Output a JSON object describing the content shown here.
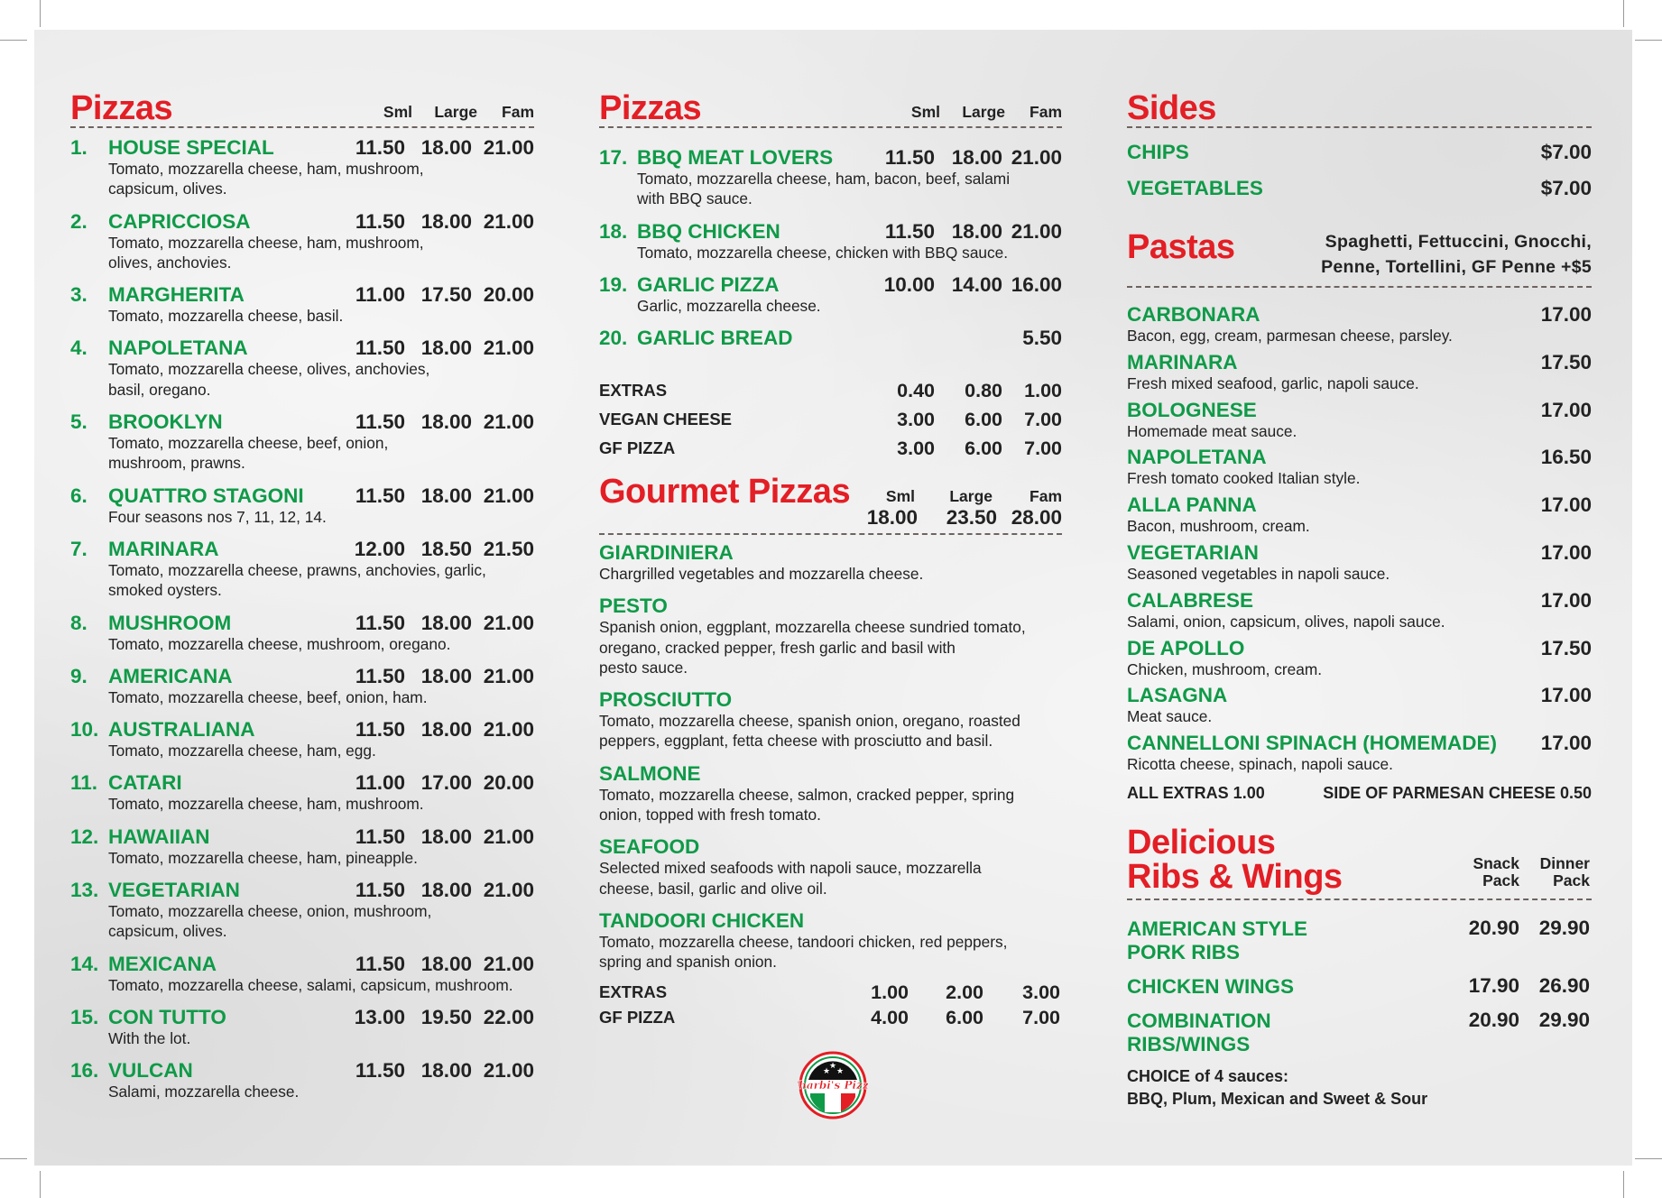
{
  "colors": {
    "heading": "#e31e25",
    "item_name": "#0f9a48",
    "text": "#222222",
    "background": "#ebebeb"
  },
  "left": {
    "title": "Pizzas",
    "cols": [
      "Sml",
      "Large",
      "Fam"
    ],
    "items": [
      {
        "num": "1.",
        "name": "HOUSE SPECIAL",
        "prices": [
          "11.50",
          "18.00",
          "21.00"
        ],
        "desc": "Tomato, mozzarella cheese, ham, mushroom,\ncapsicum, olives."
      },
      {
        "num": "2.",
        "name": "CAPRICCIOSA",
        "prices": [
          "11.50",
          "18.00",
          "21.00"
        ],
        "desc": "Tomato, mozzarella cheese, ham, mushroom,\nolives, anchovies."
      },
      {
        "num": "3.",
        "name": "MARGHERITA",
        "prices": [
          "11.00",
          "17.50",
          "20.00"
        ],
        "desc": "Tomato, mozzarella cheese, basil."
      },
      {
        "num": "4.",
        "name": "NAPOLETANA",
        "prices": [
          "11.50",
          "18.00",
          "21.00"
        ],
        "desc": "Tomato, mozzarella cheese, olives, anchovies,\nbasil, oregano."
      },
      {
        "num": "5.",
        "name": "BROOKLYN",
        "prices": [
          "11.50",
          "18.00",
          "21.00"
        ],
        "desc": "Tomato, mozzarella cheese, beef, onion,\nmushroom, prawns."
      },
      {
        "num": "6.",
        "name": "QUATTRO STAGONI",
        "prices": [
          "11.50",
          "18.00",
          "21.00"
        ],
        "desc": "Four seasons nos 7, 11, 12, 14."
      },
      {
        "num": "7.",
        "name": "MARINARA",
        "prices": [
          "12.00",
          "18.50",
          "21.50"
        ],
        "desc": "Tomato, mozzarella cheese, prawns, anchovies, garlic,\nsmoked oysters."
      },
      {
        "num": "8.",
        "name": "MUSHROOM",
        "prices": [
          "11.50",
          "18.00",
          "21.00"
        ],
        "desc": "Tomato, mozzarella cheese, mushroom, oregano."
      },
      {
        "num": "9.",
        "name": "AMERICANA",
        "prices": [
          "11.50",
          "18.00",
          "21.00"
        ],
        "desc": "Tomato, mozzarella cheese, beef, onion, ham."
      },
      {
        "num": "10.",
        "name": "AUSTRALIANA",
        "prices": [
          "11.50",
          "18.00",
          "21.00"
        ],
        "desc": "Tomato, mozzarella cheese, ham, egg."
      },
      {
        "num": "11.",
        "name": "CATARI",
        "prices": [
          "11.00",
          "17.00",
          "20.00"
        ],
        "desc": "Tomato, mozzarella cheese, ham, mushroom."
      },
      {
        "num": "12.",
        "name": "HAWAIIAN",
        "prices": [
          "11.50",
          "18.00",
          "21.00"
        ],
        "desc": "Tomato, mozzarella cheese, ham, pineapple."
      },
      {
        "num": "13.",
        "name": "VEGETARIAN",
        "prices": [
          "11.50",
          "18.00",
          "21.00"
        ],
        "desc": "Tomato, mozzarella cheese, onion, mushroom,\ncapsicum, olives."
      },
      {
        "num": "14.",
        "name": "MEXICANA",
        "prices": [
          "11.50",
          "18.00",
          "21.00"
        ],
        "desc": "Tomato, mozzarella cheese, salami, capsicum, mushroom."
      },
      {
        "num": "15.",
        "name": "CON TUTTO",
        "prices": [
          "13.00",
          "19.50",
          "22.00"
        ],
        "desc": "With the lot."
      },
      {
        "num": "16.",
        "name": "VULCAN",
        "prices": [
          "11.50",
          "18.00",
          "21.00"
        ],
        "desc": "Salami, mozzarella cheese."
      }
    ]
  },
  "middle": {
    "title": "Pizzas",
    "cols": [
      "Sml",
      "Large",
      "Fam"
    ],
    "items": [
      {
        "num": "17.",
        "name": "BBQ MEAT LOVERS",
        "prices": [
          "11.50",
          "18.00",
          "21.00"
        ],
        "desc": "Tomato, mozzarella cheese, ham, bacon, beef, salami\nwith BBQ sauce."
      },
      {
        "num": "18.",
        "name": "BBQ CHICKEN",
        "prices": [
          "11.50",
          "18.00",
          "21.00"
        ],
        "desc": "Tomato, mozzarella cheese, chicken with BBQ sauce."
      },
      {
        "num": "19.",
        "name": "GARLIC PIZZA",
        "prices": [
          "10.00",
          "14.00",
          "16.00"
        ],
        "desc": "Garlic, mozzarella cheese."
      },
      {
        "num": "20.",
        "name": "GARLIC BREAD",
        "prices": [
          "",
          "",
          "5.50"
        ],
        "desc": ""
      }
    ],
    "extras": [
      {
        "label": "EXTRAS",
        "prices": [
          "0.40",
          "0.80",
          "1.00"
        ]
      },
      {
        "label": "VEGAN CHEESE",
        "prices": [
          "3.00",
          "6.00",
          "7.00"
        ]
      },
      {
        "label": "GF PIZZA",
        "prices": [
          "3.00",
          "6.00",
          "7.00"
        ]
      }
    ],
    "gourmet": {
      "title": "Gourmet Pizzas",
      "cols": [
        "Sml",
        "Large",
        "Fam"
      ],
      "prices": [
        "18.00",
        "23.50",
        "28.00"
      ],
      "items": [
        {
          "name": "GIARDINIERA",
          "desc": "Chargrilled vegetables and mozzarella cheese."
        },
        {
          "name": "PESTO",
          "desc": "Spanish onion, eggplant, mozzarella cheese sundried tomato,\noregano, cracked pepper, fresh garlic and basil with\npesto sauce."
        },
        {
          "name": "PROSCIUTTO",
          "desc": "Tomato, mozzarella cheese, spanish onion, oregano, roasted\npeppers, eggplant, fetta cheese with prosciutto and basil."
        },
        {
          "name": "SALMONE",
          "desc": "Tomato, mozzarella cheese, salmon, cracked pepper, spring\nonion, topped with fresh tomato."
        },
        {
          "name": "SEAFOOD",
          "desc": "Selected mixed seafoods with napoli sauce, mozzarella\ncheese, basil, garlic and olive oil."
        },
        {
          "name": "TANDOORI CHICKEN",
          "desc": "Tomato, mozzarella cheese, tandoori chicken, red peppers,\nspring and spanish onion."
        }
      ],
      "extras": [
        {
          "label": "EXTRAS",
          "prices": [
            "1.00",
            "2.00",
            "3.00"
          ]
        },
        {
          "label": "GF PIZZA",
          "prices": [
            "4.00",
            "6.00",
            "7.00"
          ]
        }
      ]
    },
    "logo": {
      "text": "Charbi's Pizza"
    }
  },
  "right": {
    "sides": {
      "title": "Sides",
      "items": [
        {
          "name": "CHIPS",
          "price": "$7.00"
        },
        {
          "name": "VEGETABLES",
          "price": "$7.00"
        }
      ]
    },
    "pastas": {
      "title": "Pastas",
      "subtitle_line1": "Spaghetti, Fettuccini, Gnocchi,",
      "subtitle_line2": "Penne, Tortellini, GF Penne +$5",
      "items": [
        {
          "name": "CARBONARA",
          "price": "17.00",
          "desc": "Bacon, egg, cream, parmesan cheese, parsley."
        },
        {
          "name": "MARINARA",
          "price": "17.50",
          "desc": "Fresh mixed seafood, garlic, napoli sauce."
        },
        {
          "name": "BOLOGNESE",
          "price": "17.00",
          "desc": "Homemade meat sauce."
        },
        {
          "name": "NAPOLETANA",
          "price": "16.50",
          "desc": "Fresh tomato cooked Italian style."
        },
        {
          "name": "ALLA PANNA",
          "price": "17.00",
          "desc": "Bacon, mushroom, cream."
        },
        {
          "name": "VEGETARIAN",
          "price": "17.00",
          "desc": "Seasoned vegetables in napoli sauce."
        },
        {
          "name": "CALABRESE",
          "price": "17.00",
          "desc": "Salami, onion, capsicum, olives, napoli sauce."
        },
        {
          "name": "DE APOLLO",
          "price": "17.50",
          "desc": "Chicken, mushroom, cream."
        },
        {
          "name": "LASAGNA",
          "price": "17.00",
          "desc": "Meat sauce."
        },
        {
          "name": "CANNELLONI SPINACH (HOMEMADE)",
          "price": "17.00",
          "desc": "Ricotta cheese, spinach, napoli sauce."
        }
      ],
      "all_extras": "ALL EXTRAS 1.00",
      "parmesan": "SIDE OF PARMESAN CHEESE 0.50"
    },
    "ribs": {
      "title_line1": "Delicious",
      "title_line2": "Ribs & Wings",
      "cols": [
        "Snack\nPack",
        "Dinner\nPack"
      ],
      "items": [
        {
          "name": "AMERICAN STYLE\nPORK RIBS",
          "prices": [
            "20.90",
            "29.90"
          ]
        },
        {
          "name": "CHICKEN WINGS",
          "prices": [
            "17.90",
            "26.90"
          ]
        },
        {
          "name": "COMBINATION\nRIBS/WINGS",
          "prices": [
            "20.90",
            "29.90"
          ]
        }
      ],
      "sauces_label": "CHOICE of 4 sauces:",
      "sauces_list": "BBQ, Plum, Mexican and Sweet & Sour"
    }
  }
}
